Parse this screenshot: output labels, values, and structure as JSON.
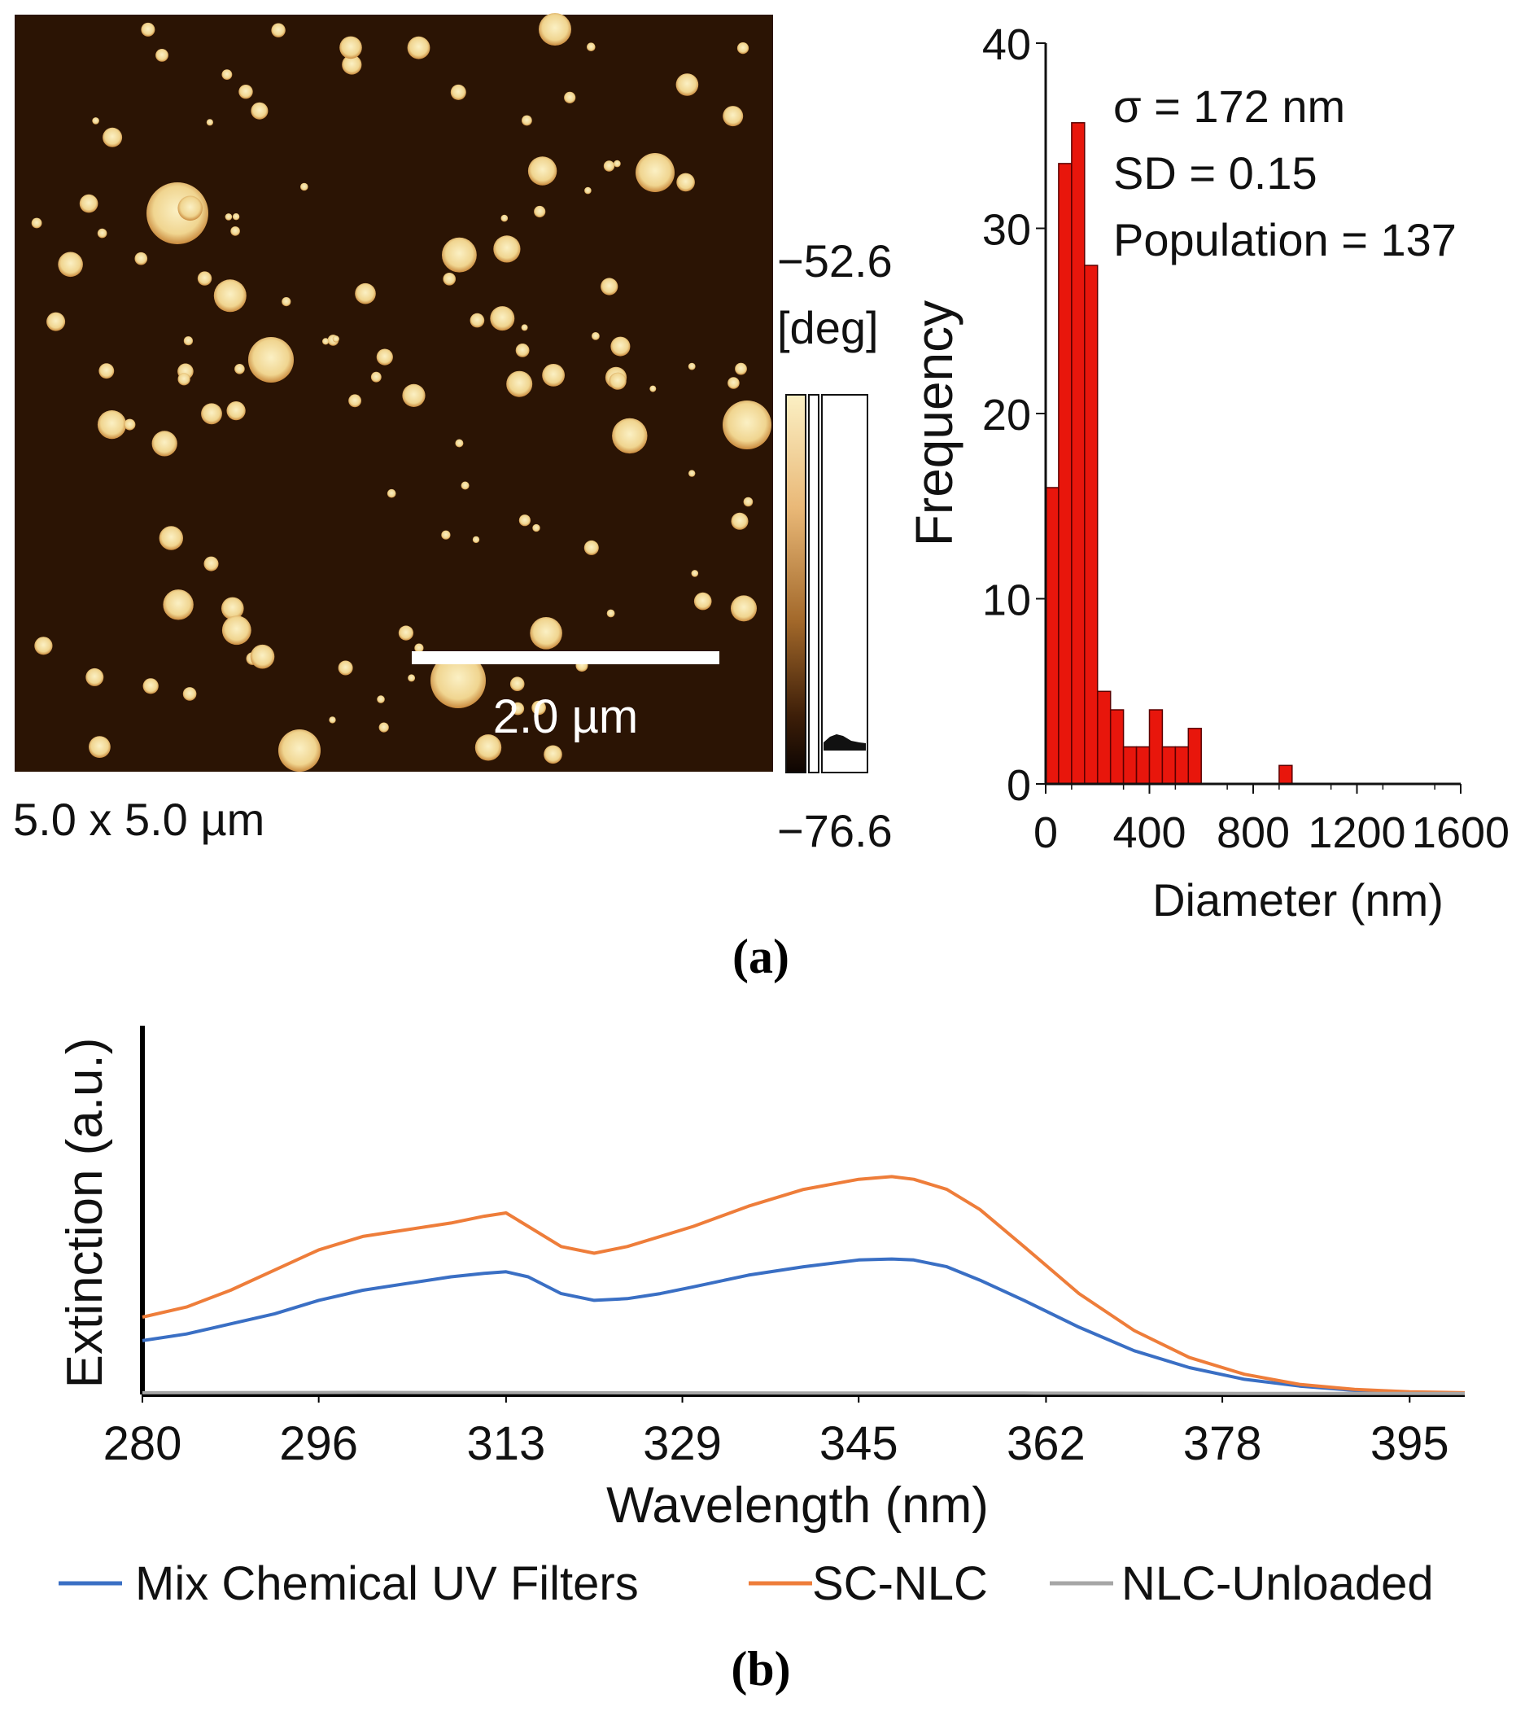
{
  "panel_a": {
    "label": "(a)",
    "afm": {
      "scan_size": "5.0 x 5.0 µm",
      "scale_bar": "2.0 µm",
      "colorbar": {
        "max": "−52.6",
        "unit": "[deg]",
        "min": "−76.6"
      },
      "colors": {
        "background": "#2b1404",
        "particle": "#f2dfa0",
        "particle_edge": "#c98a3e"
      }
    }
  },
  "panel_b": {
    "label": "(b)"
  },
  "chart_data": [
    {
      "type": "bar",
      "title": "",
      "xlabel": "Diameter (nm)",
      "ylabel": "Frequency",
      "xlim": [
        0,
        1600
      ],
      "ylim": [
        0,
        40
      ],
      "xticks": [
        "0",
        "400",
        "800",
        "1200",
        "1600"
      ],
      "yticks": [
        "0",
        "10",
        "20",
        "30",
        "40"
      ],
      "bin_width": 50,
      "bins": [
        {
          "x": 0,
          "value": 16
        },
        {
          "x": 50,
          "value": 33.5
        },
        {
          "x": 100,
          "value": 35.7
        },
        {
          "x": 150,
          "value": 28
        },
        {
          "x": 200,
          "value": 5
        },
        {
          "x": 250,
          "value": 4
        },
        {
          "x": 300,
          "value": 2
        },
        {
          "x": 350,
          "value": 2
        },
        {
          "x": 400,
          "value": 4
        },
        {
          "x": 450,
          "value": 2
        },
        {
          "x": 500,
          "value": 2
        },
        {
          "x": 550,
          "value": 3
        },
        {
          "x": 900,
          "value": 1
        }
      ],
      "annotations": [
        "σ = 172 nm",
        "SD = 0.15",
        "Population = 137"
      ],
      "color": "#e8160c"
    },
    {
      "type": "line",
      "title": "",
      "xlabel": "Wavelength (nm)",
      "ylabel": "Extinction (a.u.)",
      "xlim": [
        280,
        400
      ],
      "ylim": [
        0,
        1
      ],
      "xticks": [
        280,
        296,
        313,
        329,
        345,
        362,
        378,
        395
      ],
      "legend_position": "bottom",
      "series": [
        {
          "name": "Mix Chemical UV Filters",
          "color": "#3a6fc4",
          "x": [
            280,
            284,
            288,
            292,
            296,
            300,
            304,
            308,
            311,
            313,
            315,
            318,
            321,
            324,
            327,
            330,
            335,
            340,
            345,
            348,
            350,
            353,
            356,
            360,
            365,
            370,
            375,
            380,
            385,
            390,
            395,
            400
          ],
          "y": [
            0.16,
            0.18,
            0.21,
            0.24,
            0.28,
            0.31,
            0.33,
            0.35,
            0.36,
            0.365,
            0.35,
            0.3,
            0.28,
            0.285,
            0.3,
            0.32,
            0.355,
            0.38,
            0.4,
            0.403,
            0.4,
            0.38,
            0.34,
            0.28,
            0.2,
            0.13,
            0.08,
            0.045,
            0.025,
            0.012,
            0.006,
            0.004
          ]
        },
        {
          "name": "SC-NLC",
          "color": "#ee7d3a",
          "x": [
            280,
            284,
            288,
            292,
            296,
            300,
            304,
            308,
            311,
            313,
            315,
            318,
            321,
            324,
            327,
            330,
            335,
            340,
            345,
            348,
            350,
            353,
            356,
            360,
            365,
            370,
            375,
            380,
            385,
            390,
            395,
            400
          ],
          "y": [
            0.23,
            0.26,
            0.31,
            0.37,
            0.43,
            0.47,
            0.49,
            0.51,
            0.53,
            0.54,
            0.5,
            0.44,
            0.42,
            0.44,
            0.47,
            0.5,
            0.56,
            0.61,
            0.64,
            0.648,
            0.64,
            0.61,
            0.55,
            0.44,
            0.3,
            0.19,
            0.11,
            0.06,
            0.03,
            0.015,
            0.008,
            0.005
          ]
        },
        {
          "name": "NLC-Unloaded",
          "color": "#a6a6a6",
          "x": [
            280,
            300,
            320,
            340,
            360,
            380,
            400
          ],
          "y": [
            0.005,
            0.006,
            0.005,
            0.004,
            0.004,
            0.003,
            0.003
          ]
        }
      ]
    }
  ]
}
